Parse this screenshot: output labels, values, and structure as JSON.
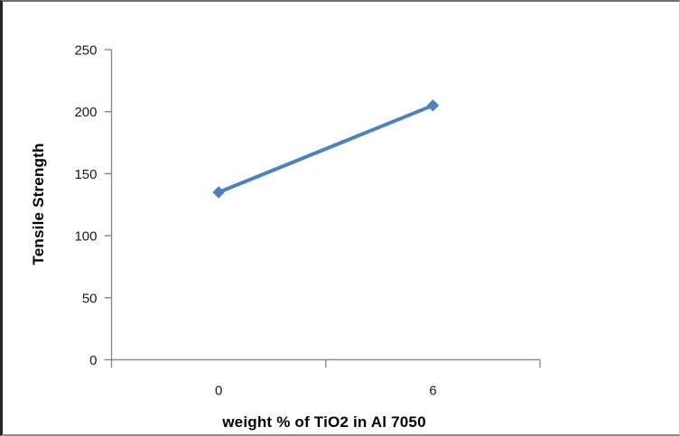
{
  "chart_data": {
    "type": "line",
    "categories": [
      "0",
      "6"
    ],
    "x": [
      0,
      6
    ],
    "series": [
      {
        "name": "Tensile Strength",
        "values": [
          135,
          205
        ]
      }
    ],
    "title": "",
    "xlabel": "weight % of TiO2 in Al 7050",
    "ylabel": "Tensile Strength",
    "ylim": [
      0,
      250
    ],
    "yticks": [
      0,
      50,
      100,
      150,
      200,
      250
    ],
    "grid": false,
    "legend": "none",
    "line_color": "#4f81bd",
    "marker": "diamond",
    "axis_color": "#8a8a8a",
    "tick_label_color": "#1a1a1a"
  }
}
